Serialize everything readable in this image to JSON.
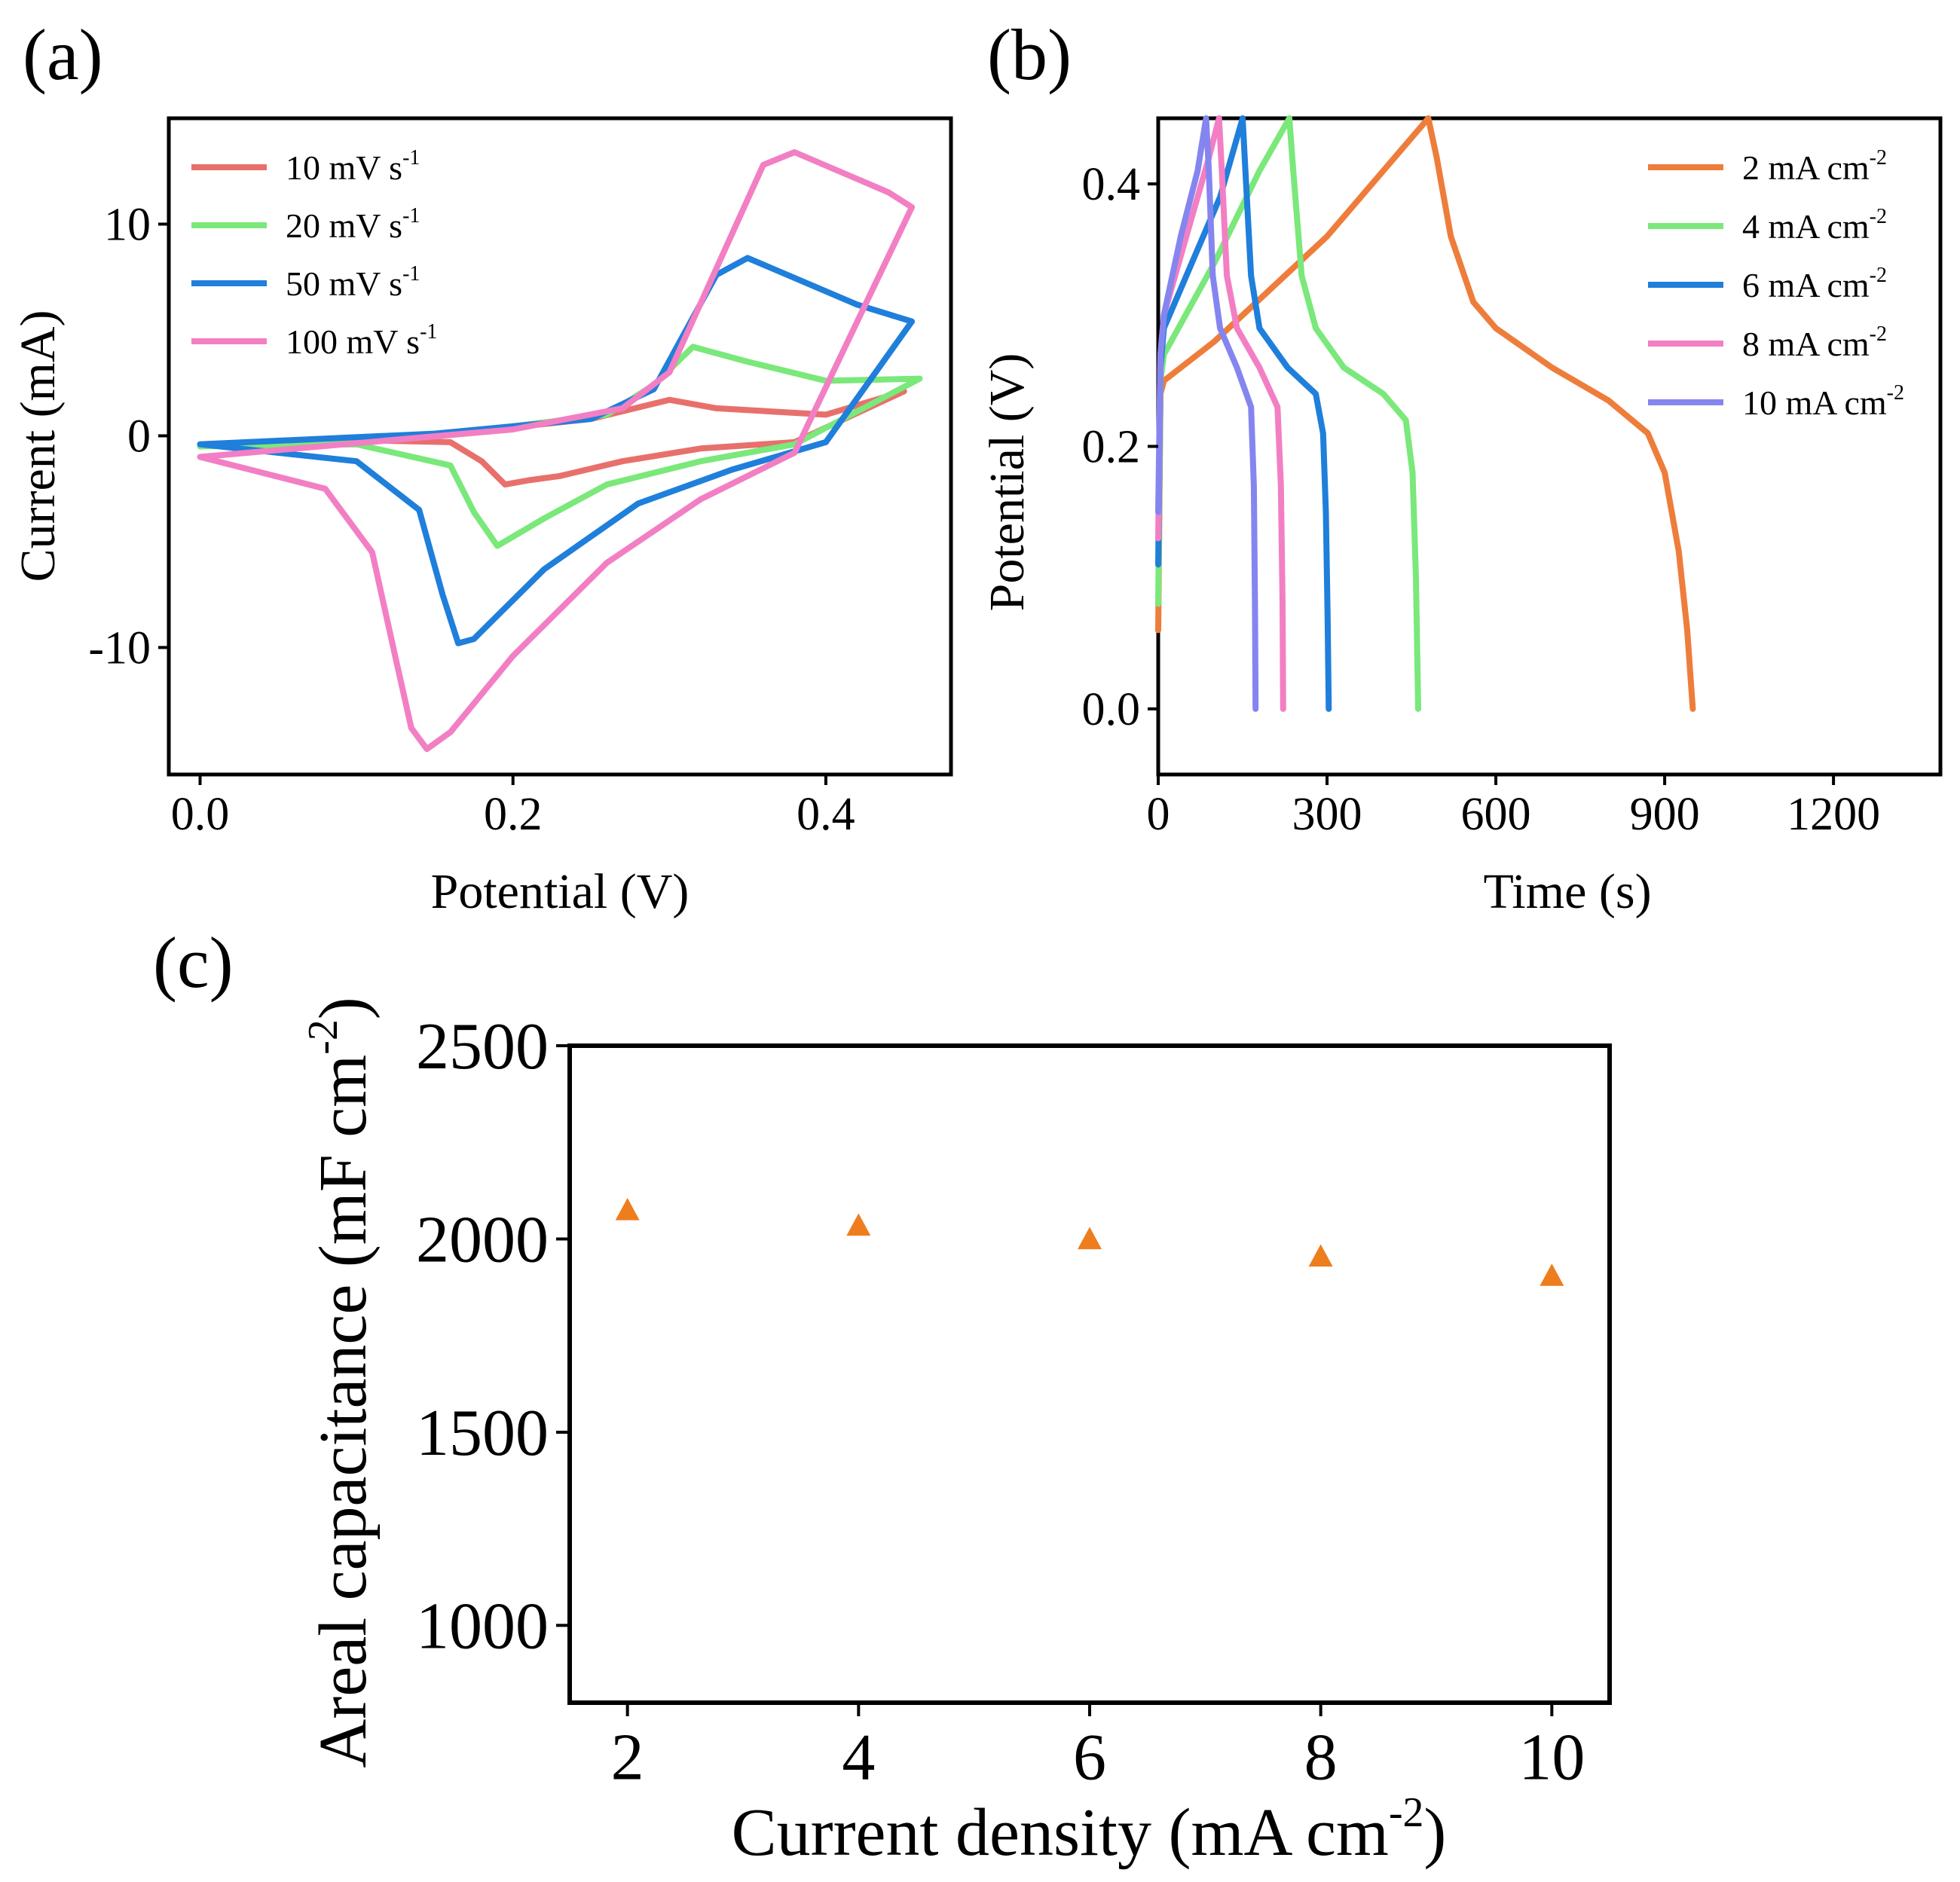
{
  "chart_data": [
    {
      "panel": "(a)",
      "type": "line",
      "xlabel": "Potential (V)",
      "ylabel": "Current (mA)",
      "xlim": [
        -0.02,
        0.48
      ],
      "ylim": [
        -16,
        15
      ],
      "xticks": [
        0.0,
        0.2,
        0.4
      ],
      "xtick_labels": [
        "0.0",
        "0.2",
        "0.4"
      ],
      "yticks": [
        10,
        0,
        -10
      ],
      "ytick_labels": [
        "10",
        "0",
        "-10"
      ],
      "legend_position": "top-left",
      "series": [
        {
          "name": "10 mV s-1",
          "label": "10  mV s",
          "sup": "-1",
          "color": "#e8706c",
          "points": [
            [
              0.0,
              -0.4
            ],
            [
              0.1,
              -0.2
            ],
            [
              0.16,
              -0.3
            ],
            [
              0.18,
              -1.2
            ],
            [
              0.195,
              -2.3
            ],
            [
              0.21,
              -2.1
            ],
            [
              0.23,
              -1.9
            ],
            [
              0.27,
              -1.2
            ],
            [
              0.32,
              -0.6
            ],
            [
              0.38,
              -0.3
            ],
            [
              0.45,
              2.1
            ],
            [
              0.4,
              1.0
            ],
            [
              0.33,
              1.3
            ],
            [
              0.3,
              1.7
            ],
            [
              0.25,
              0.8
            ],
            [
              0.15,
              0.0
            ],
            [
              0.0,
              -0.4
            ]
          ]
        },
        {
          "name": "20 mV s-1",
          "label": "20  mV s",
          "sup": "-1",
          "color": "#7ae87a",
          "points": [
            [
              0.0,
              -0.5
            ],
            [
              0.1,
              -0.4
            ],
            [
              0.16,
              -1.4
            ],
            [
              0.175,
              -3.6
            ],
            [
              0.19,
              -5.2
            ],
            [
              0.22,
              -3.9
            ],
            [
              0.26,
              -2.3
            ],
            [
              0.32,
              -1.2
            ],
            [
              0.38,
              -0.4
            ],
            [
              0.46,
              2.7
            ],
            [
              0.4,
              2.6
            ],
            [
              0.35,
              3.5
            ],
            [
              0.315,
              4.2
            ],
            [
              0.29,
              2.4
            ],
            [
              0.26,
              1.0
            ],
            [
              0.15,
              0.0
            ],
            [
              0.0,
              -0.5
            ]
          ]
        },
        {
          "name": "50 mV s-1",
          "label": "50  mV s",
          "sup": "-1",
          "color": "#1f7fdb",
          "points": [
            [
              0.0,
              -0.4
            ],
            [
              0.1,
              -1.2
            ],
            [
              0.14,
              -3.5
            ],
            [
              0.155,
              -7.5
            ],
            [
              0.165,
              -9.8
            ],
            [
              0.175,
              -9.6
            ],
            [
              0.22,
              -6.3
            ],
            [
              0.28,
              -3.2
            ],
            [
              0.34,
              -1.6
            ],
            [
              0.4,
              -0.3
            ],
            [
              0.455,
              5.4
            ],
            [
              0.42,
              6.2
            ],
            [
              0.35,
              8.4
            ],
            [
              0.33,
              7.6
            ],
            [
              0.29,
              2.2
            ],
            [
              0.25,
              0.8
            ],
            [
              0.15,
              0.1
            ],
            [
              0.0,
              -0.4
            ]
          ]
        },
        {
          "name": "100 mV s-1",
          "label": "100 mV s",
          "sup": "-1",
          "color": "#f27fc4",
          "points": [
            [
              0.0,
              -1.0
            ],
            [
              0.08,
              -2.5
            ],
            [
              0.11,
              -5.5
            ],
            [
              0.125,
              -10.5
            ],
            [
              0.135,
              -13.8
            ],
            [
              0.145,
              -14.8
            ],
            [
              0.16,
              -14.0
            ],
            [
              0.2,
              -10.4
            ],
            [
              0.26,
              -6.0
            ],
            [
              0.32,
              -3.0
            ],
            [
              0.38,
              -0.8
            ],
            [
              0.455,
              10.8
            ],
            [
              0.44,
              11.5
            ],
            [
              0.38,
              13.4
            ],
            [
              0.36,
              12.8
            ],
            [
              0.3,
              3.0
            ],
            [
              0.27,
              1.3
            ],
            [
              0.2,
              0.3
            ],
            [
              0.0,
              -1.0
            ]
          ]
        }
      ]
    },
    {
      "panel": "(b)",
      "type": "line",
      "xlabel": "Time (s)",
      "ylabel": "Potential (V)",
      "xlim": [
        0,
        1390
      ],
      "ylim": [
        -0.05,
        0.45
      ],
      "xticks": [
        0,
        300,
        600,
        900,
        1200
      ],
      "xtick_labels": [
        "0",
        "300",
        "600",
        "900",
        "1200"
      ],
      "yticks": [
        0.0,
        0.2,
        0.4
      ],
      "ytick_labels": [
        "0.0",
        "0.2",
        "0.4"
      ],
      "legend_position": "top-right",
      "series": [
        {
          "name": "2 mA cm-2",
          "label": "2   mA cm",
          "sup": "-2",
          "color": "#ee7d3c",
          "points": [
            [
              0,
              0.06
            ],
            [
              4,
              0.24
            ],
            [
              10,
              0.25
            ],
            [
              100,
              0.28
            ],
            [
              300,
              0.36
            ],
            [
              480,
              0.45
            ],
            [
              495,
              0.42
            ],
            [
              520,
              0.36
            ],
            [
              560,
              0.31
            ],
            [
              600,
              0.29
            ],
            [
              700,
              0.26
            ],
            [
              800,
              0.235
            ],
            [
              870,
              0.21
            ],
            [
              900,
              0.18
            ],
            [
              925,
              0.12
            ],
            [
              940,
              0.06
            ],
            [
              950,
              0.0
            ]
          ]
        },
        {
          "name": "4 mA cm-2",
          "label": "4   mA cm",
          "sup": "-2",
          "color": "#7ae87a",
          "points": [
            [
              0,
              0.08
            ],
            [
              4,
              0.25
            ],
            [
              10,
              0.27
            ],
            [
              100,
              0.34
            ],
            [
              180,
              0.41
            ],
            [
              233,
              0.45
            ],
            [
              240,
              0.41
            ],
            [
              255,
              0.33
            ],
            [
              280,
              0.29
            ],
            [
              330,
              0.26
            ],
            [
              400,
              0.24
            ],
            [
              440,
              0.22
            ],
            [
              452,
              0.18
            ],
            [
              458,
              0.1
            ],
            [
              462,
              0.0
            ]
          ]
        },
        {
          "name": "6 mA cm-2",
          "label": "6   mA cm",
          "sup": "-2",
          "color": "#1f7fdb",
          "points": [
            [
              0,
              0.11
            ],
            [
              4,
              0.26
            ],
            [
              10,
              0.29
            ],
            [
              60,
              0.34
            ],
            [
              110,
              0.39
            ],
            [
              150,
              0.45
            ],
            [
              155,
              0.41
            ],
            [
              165,
              0.33
            ],
            [
              180,
              0.29
            ],
            [
              230,
              0.26
            ],
            [
              280,
              0.24
            ],
            [
              293,
              0.21
            ],
            [
              298,
              0.15
            ],
            [
              301,
              0.07
            ],
            [
              303,
              0.0
            ]
          ]
        },
        {
          "name": "8 mA cm-2",
          "label": "8   mA cm",
          "sup": "-2",
          "color": "#f27fc4",
          "points": [
            [
              0,
              0.13
            ],
            [
              4,
              0.27
            ],
            [
              10,
              0.3
            ],
            [
              50,
              0.36
            ],
            [
              90,
              0.42
            ],
            [
              108,
              0.45
            ],
            [
              113,
              0.41
            ],
            [
              122,
              0.33
            ],
            [
              140,
              0.29
            ],
            [
              180,
              0.26
            ],
            [
              212,
              0.23
            ],
            [
              218,
              0.17
            ],
            [
              221,
              0.08
            ],
            [
              222,
              0.0
            ]
          ]
        },
        {
          "name": "10 mA cm-2",
          "label": "10  mA cm",
          "sup": "-2",
          "color": "#8585f0",
          "points": [
            [
              0,
              0.15
            ],
            [
              4,
              0.27
            ],
            [
              10,
              0.3
            ],
            [
              40,
              0.36
            ],
            [
              70,
              0.41
            ],
            [
              85,
              0.45
            ],
            [
              90,
              0.41
            ],
            [
              97,
              0.33
            ],
            [
              110,
              0.29
            ],
            [
              140,
              0.26
            ],
            [
              165,
              0.23
            ],
            [
              170,
              0.17
            ],
            [
              172,
              0.08
            ],
            [
              173,
              0.0
            ]
          ]
        }
      ]
    },
    {
      "panel": "(c)",
      "type": "scatter",
      "xlabel": "Current density (mA cm",
      "xlabel_sup": "-2",
      "xlabel_end": ")",
      "ylabel": "Areal capacitance (mF cm",
      "ylabel_sup": "-2",
      "ylabel_end": ")",
      "xlim": [
        1.5,
        10.5
      ],
      "ylim": [
        800,
        2500
      ],
      "xticks": [
        2,
        4,
        6,
        8,
        10
      ],
      "xtick_labels": [
        "2",
        "4",
        "6",
        "8",
        "10"
      ],
      "yticks": [
        2500,
        2000,
        1500,
        1000
      ],
      "ytick_labels": [
        "2500",
        "2000",
        "1500",
        "1000"
      ],
      "marker": "triangle",
      "color": "#ee7d1e",
      "x": [
        2,
        4,
        6,
        8,
        10
      ],
      "values": [
        2075,
        2035,
        2000,
        1955,
        1905
      ]
    }
  ]
}
